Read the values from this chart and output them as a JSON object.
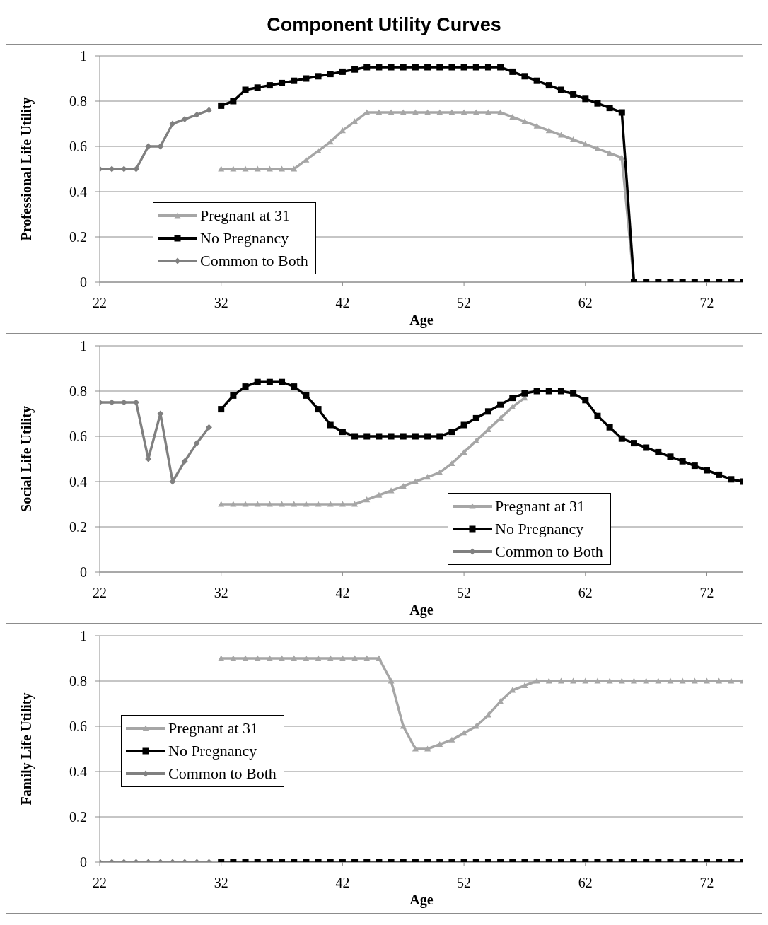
{
  "chart_data": [
    {
      "type": "line",
      "title": "Component Utility Curves",
      "xlabel": "Age",
      "ylabel": "Professional Life Utility",
      "xlim": [
        22,
        75
      ],
      "xticks": [
        22,
        32,
        42,
        52,
        62,
        72
      ],
      "ylim": [
        0,
        1
      ],
      "yticks": [
        0,
        0.2,
        0.4,
        0.6,
        0.8,
        1
      ],
      "grid": "y",
      "legend": "bottom left",
      "series": [
        {
          "name": "Pregnant at 31",
          "color": "#a6a6a6",
          "marker": "triangle",
          "x": [
            32,
            33,
            34,
            35,
            36,
            37,
            38,
            39,
            40,
            41,
            42,
            43,
            44,
            45,
            46,
            47,
            48,
            49,
            50,
            51,
            52,
            53,
            54,
            55,
            56,
            57,
            58,
            59,
            60,
            61,
            62,
            63,
            64,
            65,
            66
          ],
          "values": [
            0.5,
            0.5,
            0.5,
            0.5,
            0.5,
            0.5,
            0.5,
            0.54,
            0.58,
            0.62,
            0.67,
            0.71,
            0.75,
            0.75,
            0.75,
            0.75,
            0.75,
            0.75,
            0.75,
            0.75,
            0.75,
            0.75,
            0.75,
            0.75,
            0.73,
            0.71,
            0.69,
            0.67,
            0.65,
            0.63,
            0.61,
            0.59,
            0.57,
            0.55,
            0
          ]
        },
        {
          "name": "No Pregnancy",
          "color": "#000000",
          "marker": "square",
          "x": [
            32,
            33,
            34,
            35,
            36,
            37,
            38,
            39,
            40,
            41,
            42,
            43,
            44,
            45,
            46,
            47,
            48,
            49,
            50,
            51,
            52,
            53,
            54,
            55,
            56,
            57,
            58,
            59,
            60,
            61,
            62,
            63,
            64,
            65,
            66,
            67,
            68,
            69,
            70,
            71,
            72,
            73,
            74,
            75
          ],
          "values": [
            0.78,
            0.8,
            0.85,
            0.86,
            0.87,
            0.88,
            0.89,
            0.9,
            0.91,
            0.92,
            0.93,
            0.94,
            0.95,
            0.95,
            0.95,
            0.95,
            0.95,
            0.95,
            0.95,
            0.95,
            0.95,
            0.95,
            0.95,
            0.95,
            0.93,
            0.91,
            0.89,
            0.87,
            0.85,
            0.83,
            0.81,
            0.79,
            0.77,
            0.75,
            0,
            0,
            0,
            0,
            0,
            0,
            0,
            0,
            0,
            0
          ]
        },
        {
          "name": "Common to Both",
          "color": "#808080",
          "marker": "diamond",
          "x": [
            22,
            23,
            24,
            25,
            26,
            27,
            28,
            29,
            30,
            31
          ],
          "values": [
            0.5,
            0.5,
            0.5,
            0.5,
            0.6,
            0.6,
            0.7,
            0.72,
            0.74,
            0.76
          ]
        }
      ]
    },
    {
      "type": "line",
      "xlabel": "Age",
      "ylabel": "Social Life Utility",
      "xlim": [
        22,
        75
      ],
      "xticks": [
        22,
        32,
        42,
        52,
        62,
        72
      ],
      "ylim": [
        0,
        1
      ],
      "yticks": [
        0,
        0.2,
        0.4,
        0.6,
        0.8,
        1
      ],
      "grid": "y",
      "legend": "bottom right",
      "series": [
        {
          "name": "Pregnant at 31",
          "color": "#a6a6a6",
          "marker": "triangle",
          "x": [
            32,
            33,
            34,
            35,
            36,
            37,
            38,
            39,
            40,
            41,
            42,
            43,
            44,
            45,
            46,
            47,
            48,
            49,
            50,
            51,
            52,
            53,
            54,
            55,
            56,
            57
          ],
          "values": [
            0.3,
            0.3,
            0.3,
            0.3,
            0.3,
            0.3,
            0.3,
            0.3,
            0.3,
            0.3,
            0.3,
            0.3,
            0.32,
            0.34,
            0.36,
            0.38,
            0.4,
            0.42,
            0.44,
            0.48,
            0.53,
            0.58,
            0.63,
            0.68,
            0.73,
            0.77
          ]
        },
        {
          "name": "No Pregnancy",
          "color": "#000000",
          "marker": "square",
          "x": [
            32,
            33,
            34,
            35,
            36,
            37,
            38,
            39,
            40,
            41,
            42,
            43,
            44,
            45,
            46,
            47,
            48,
            49,
            50,
            51,
            52,
            53,
            54,
            55,
            56,
            57,
            58,
            59,
            60,
            61,
            62,
            63,
            64,
            65,
            66,
            67,
            68,
            69,
            70,
            71,
            72,
            73,
            74,
            75
          ],
          "values": [
            0.72,
            0.78,
            0.82,
            0.84,
            0.84,
            0.84,
            0.82,
            0.78,
            0.72,
            0.65,
            0.62,
            0.6,
            0.6,
            0.6,
            0.6,
            0.6,
            0.6,
            0.6,
            0.6,
            0.62,
            0.65,
            0.68,
            0.71,
            0.74,
            0.77,
            0.79,
            0.8,
            0.8,
            0.8,
            0.79,
            0.76,
            0.69,
            0.64,
            0.59,
            0.57,
            0.55,
            0.53,
            0.51,
            0.49,
            0.47,
            0.45,
            0.43,
            0.41,
            0.4
          ]
        },
        {
          "name": "Common to Both",
          "color": "#808080",
          "marker": "diamond",
          "x": [
            22,
            23,
            24,
            25,
            26,
            27,
            28,
            29,
            30,
            31
          ],
          "values": [
            0.75,
            0.75,
            0.75,
            0.75,
            0.5,
            0.7,
            0.4,
            0.49,
            0.57,
            0.64
          ]
        }
      ]
    },
    {
      "type": "line",
      "xlabel": "Age",
      "ylabel": "Family Life Utility",
      "xlim": [
        22,
        75
      ],
      "xticks": [
        22,
        32,
        42,
        52,
        62,
        72
      ],
      "ylim": [
        0,
        1
      ],
      "yticks": [
        0,
        0.2,
        0.4,
        0.6,
        0.8,
        1
      ],
      "grid": "y",
      "legend": "left",
      "series": [
        {
          "name": "Pregnant at 31",
          "color": "#a6a6a6",
          "marker": "triangle",
          "x": [
            32,
            33,
            34,
            35,
            36,
            37,
            38,
            39,
            40,
            41,
            42,
            43,
            44,
            45,
            46,
            47,
            48,
            49,
            50,
            51,
            52,
            53,
            54,
            55,
            56,
            57,
            58,
            59,
            60,
            61,
            62,
            63,
            64,
            65,
            66,
            67,
            68,
            69,
            70,
            71,
            72,
            73,
            74,
            75
          ],
          "values": [
            0.9,
            0.9,
            0.9,
            0.9,
            0.9,
            0.9,
            0.9,
            0.9,
            0.9,
            0.9,
            0.9,
            0.9,
            0.9,
            0.9,
            0.8,
            0.6,
            0.5,
            0.5,
            0.52,
            0.54,
            0.57,
            0.6,
            0.65,
            0.71,
            0.76,
            0.78,
            0.8,
            0.8,
            0.8,
            0.8,
            0.8,
            0.8,
            0.8,
            0.8,
            0.8,
            0.8,
            0.8,
            0.8,
            0.8,
            0.8,
            0.8,
            0.8,
            0.8,
            0.8
          ]
        },
        {
          "name": "No Pregnancy",
          "color": "#000000",
          "marker": "square",
          "x": [
            32,
            33,
            34,
            35,
            36,
            37,
            38,
            39,
            40,
            41,
            42,
            43,
            44,
            45,
            46,
            47,
            48,
            49,
            50,
            51,
            52,
            53,
            54,
            55,
            56,
            57,
            58,
            59,
            60,
            61,
            62,
            63,
            64,
            65,
            66,
            67,
            68,
            69,
            70,
            71,
            72,
            73,
            74,
            75
          ],
          "values": [
            0,
            0,
            0,
            0,
            0,
            0,
            0,
            0,
            0,
            0,
            0,
            0,
            0,
            0,
            0,
            0,
            0,
            0,
            0,
            0,
            0,
            0,
            0,
            0,
            0,
            0,
            0,
            0,
            0,
            0,
            0,
            0,
            0,
            0,
            0,
            0,
            0,
            0,
            0,
            0,
            0,
            0,
            0,
            0
          ]
        },
        {
          "name": "Common to Both",
          "color": "#808080",
          "marker": "diamond",
          "x": [
            22,
            23,
            24,
            25,
            26,
            27,
            28,
            29,
            30,
            31
          ],
          "values": [
            0,
            0,
            0,
            0,
            0,
            0,
            0,
            0,
            0,
            0
          ]
        }
      ]
    }
  ]
}
